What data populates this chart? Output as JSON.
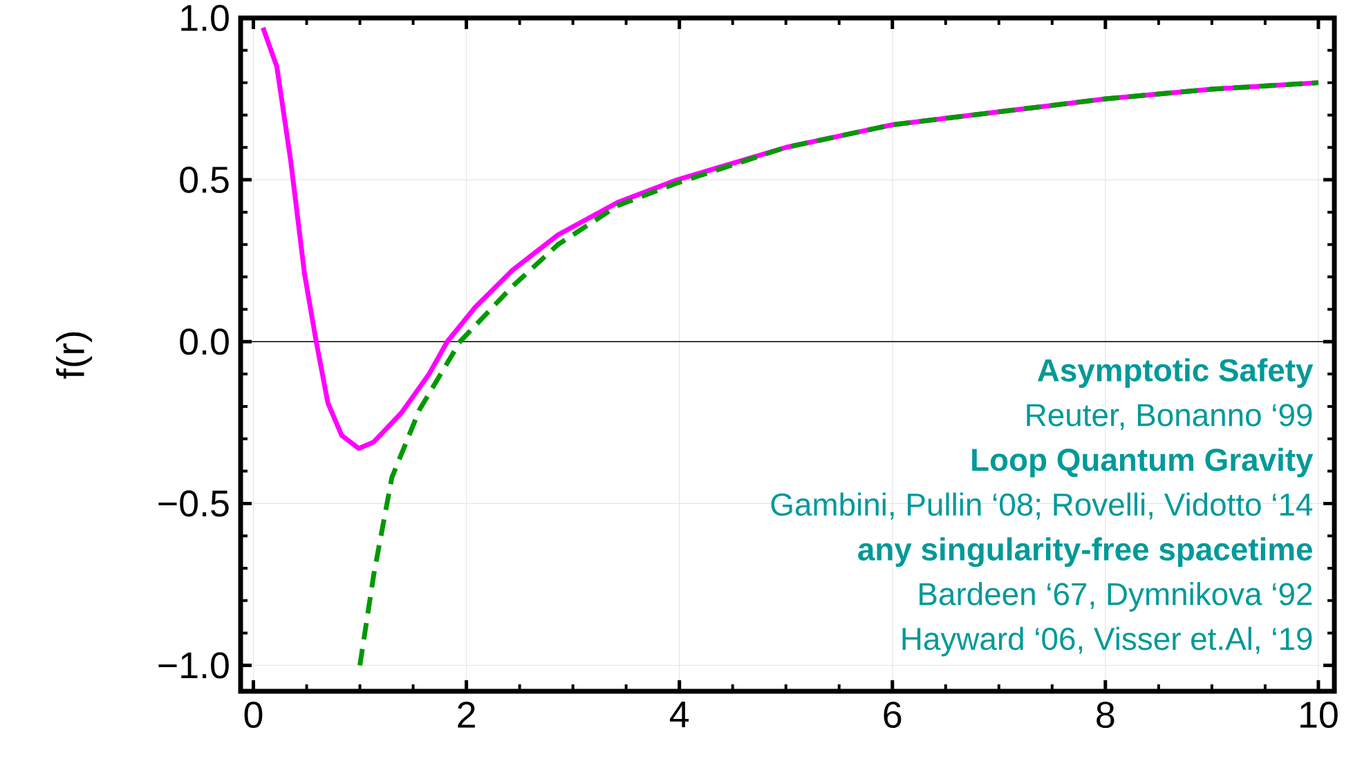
{
  "chart_data": {
    "type": "line",
    "ylabel": "f(r)",
    "xlim": [
      -0.12,
      10.15
    ],
    "ylim": [
      -1.08,
      1.0
    ],
    "xticks": [
      0,
      2,
      4,
      6,
      8,
      10
    ],
    "yticks": [
      {
        "value": -1.0,
        "label": "−1.0"
      },
      {
        "value": -0.5,
        "label": "−0.5"
      },
      {
        "value": 0.0,
        "label": "0.0"
      },
      {
        "value": 0.5,
        "label": "0.5"
      },
      {
        "value": 1.0,
        "label": "1.0"
      }
    ],
    "grid": true,
    "ref_lines": [
      {
        "axis": "y",
        "value": 0,
        "color": "#000000"
      }
    ],
    "series": [
      {
        "color": "#ff00ff",
        "line_style": "solid",
        "x": [
          0.09,
          0.22,
          0.35,
          0.48,
          0.59,
          0.7,
          0.83,
          0.99,
          1.13,
          1.39,
          1.65,
          1.82,
          2.08,
          2.43,
          2.86,
          3.42,
          3.98,
          5,
          6,
          7,
          8,
          9,
          10
        ],
        "values": [
          0.97,
          0.85,
          0.56,
          0.21,
          0,
          -0.19,
          -0.29,
          -0.33,
          -0.31,
          -0.22,
          -0.1,
          0,
          0.105,
          0.22,
          0.33,
          0.43,
          0.5,
          0.6,
          0.67,
          0.71,
          0.75,
          0.78,
          0.8
        ]
      },
      {
        "color": "#009900",
        "line_style": "dashed",
        "x": [
          1.0,
          1.13,
          1.3,
          1.56,
          1.94,
          2.43,
          2.86,
          3.42,
          3.98,
          5,
          6,
          7,
          8,
          9,
          10
        ],
        "values": [
          -1.0,
          -0.72,
          -0.42,
          -0.21,
          0,
          0.17,
          0.3,
          0.42,
          0.49,
          0.6,
          0.67,
          0.71,
          0.75,
          0.78,
          0.8
        ]
      }
    ],
    "annotations": [
      "Asymptotic Safety",
      "Reuter, Bonanno ‘99",
      "Loop Quantum Gravity",
      "Gambini, Pullin ‘08; Rovelli, Vidotto ‘14",
      "any singularity-free spacetime",
      "Bardeen ‘67, Dymnikova ‘92",
      "Hayward ‘06, Visser et.Al, ‘19"
    ]
  }
}
